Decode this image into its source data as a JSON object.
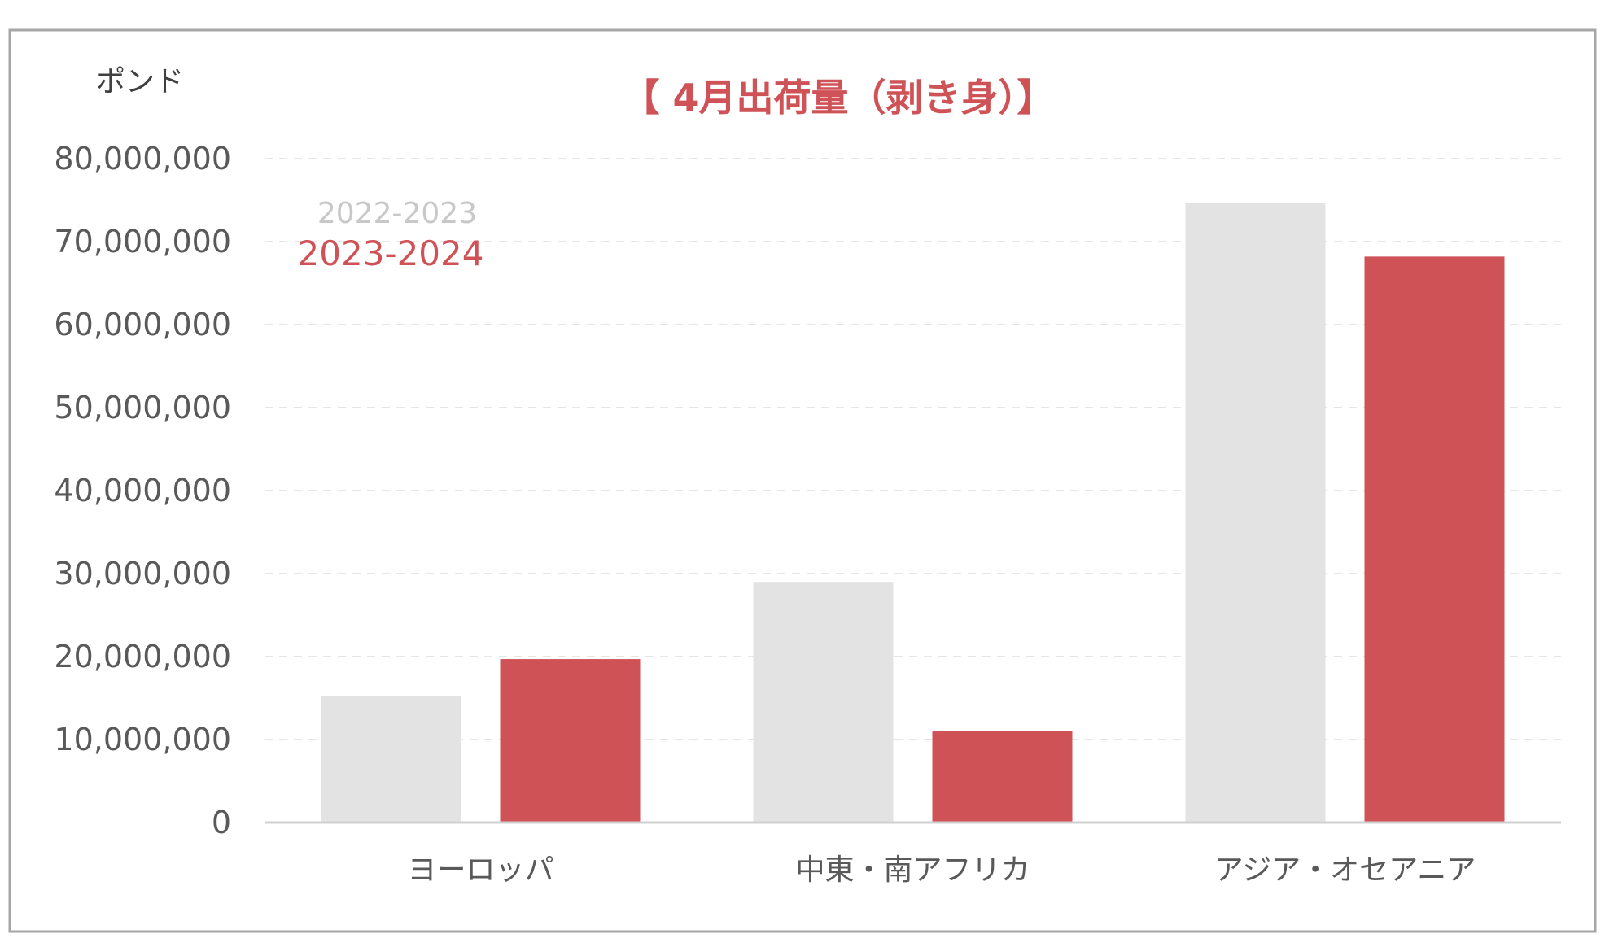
{
  "chart_data": {
    "type": "bar",
    "title": "【 4月出荷量（剥き身）】",
    "ylabel": "ポンド",
    "xlabel": "",
    "categories": [
      "ヨーロッパ",
      "中東・南アフリカ",
      "アジア・オセアニア"
    ],
    "series": [
      {
        "name": "2022-2023",
        "values": [
          15200000,
          29000000,
          74700000
        ]
      },
      {
        "name": "2023-2024",
        "values": [
          19700000,
          11000000,
          68200000
        ]
      }
    ],
    "ylim": [
      0,
      80000000
    ],
    "yticks": [
      "0",
      "10,000,000",
      "20,000,000",
      "30,000,000",
      "40,000,000",
      "50,000,000",
      "60,000,000",
      "70,000,000",
      "80,000,000"
    ],
    "grid": true,
    "legend_position": "top-left",
    "colors": {
      "series": [
        "#e3e3e3",
        "#cf5257"
      ],
      "title": "#cf5257",
      "legend_first": "#c8c8c8",
      "axis_text": "#595959",
      "grid": "#e6e6e6",
      "axis_line": "#d0d0d0",
      "frame": "#a6a6a6"
    }
  }
}
